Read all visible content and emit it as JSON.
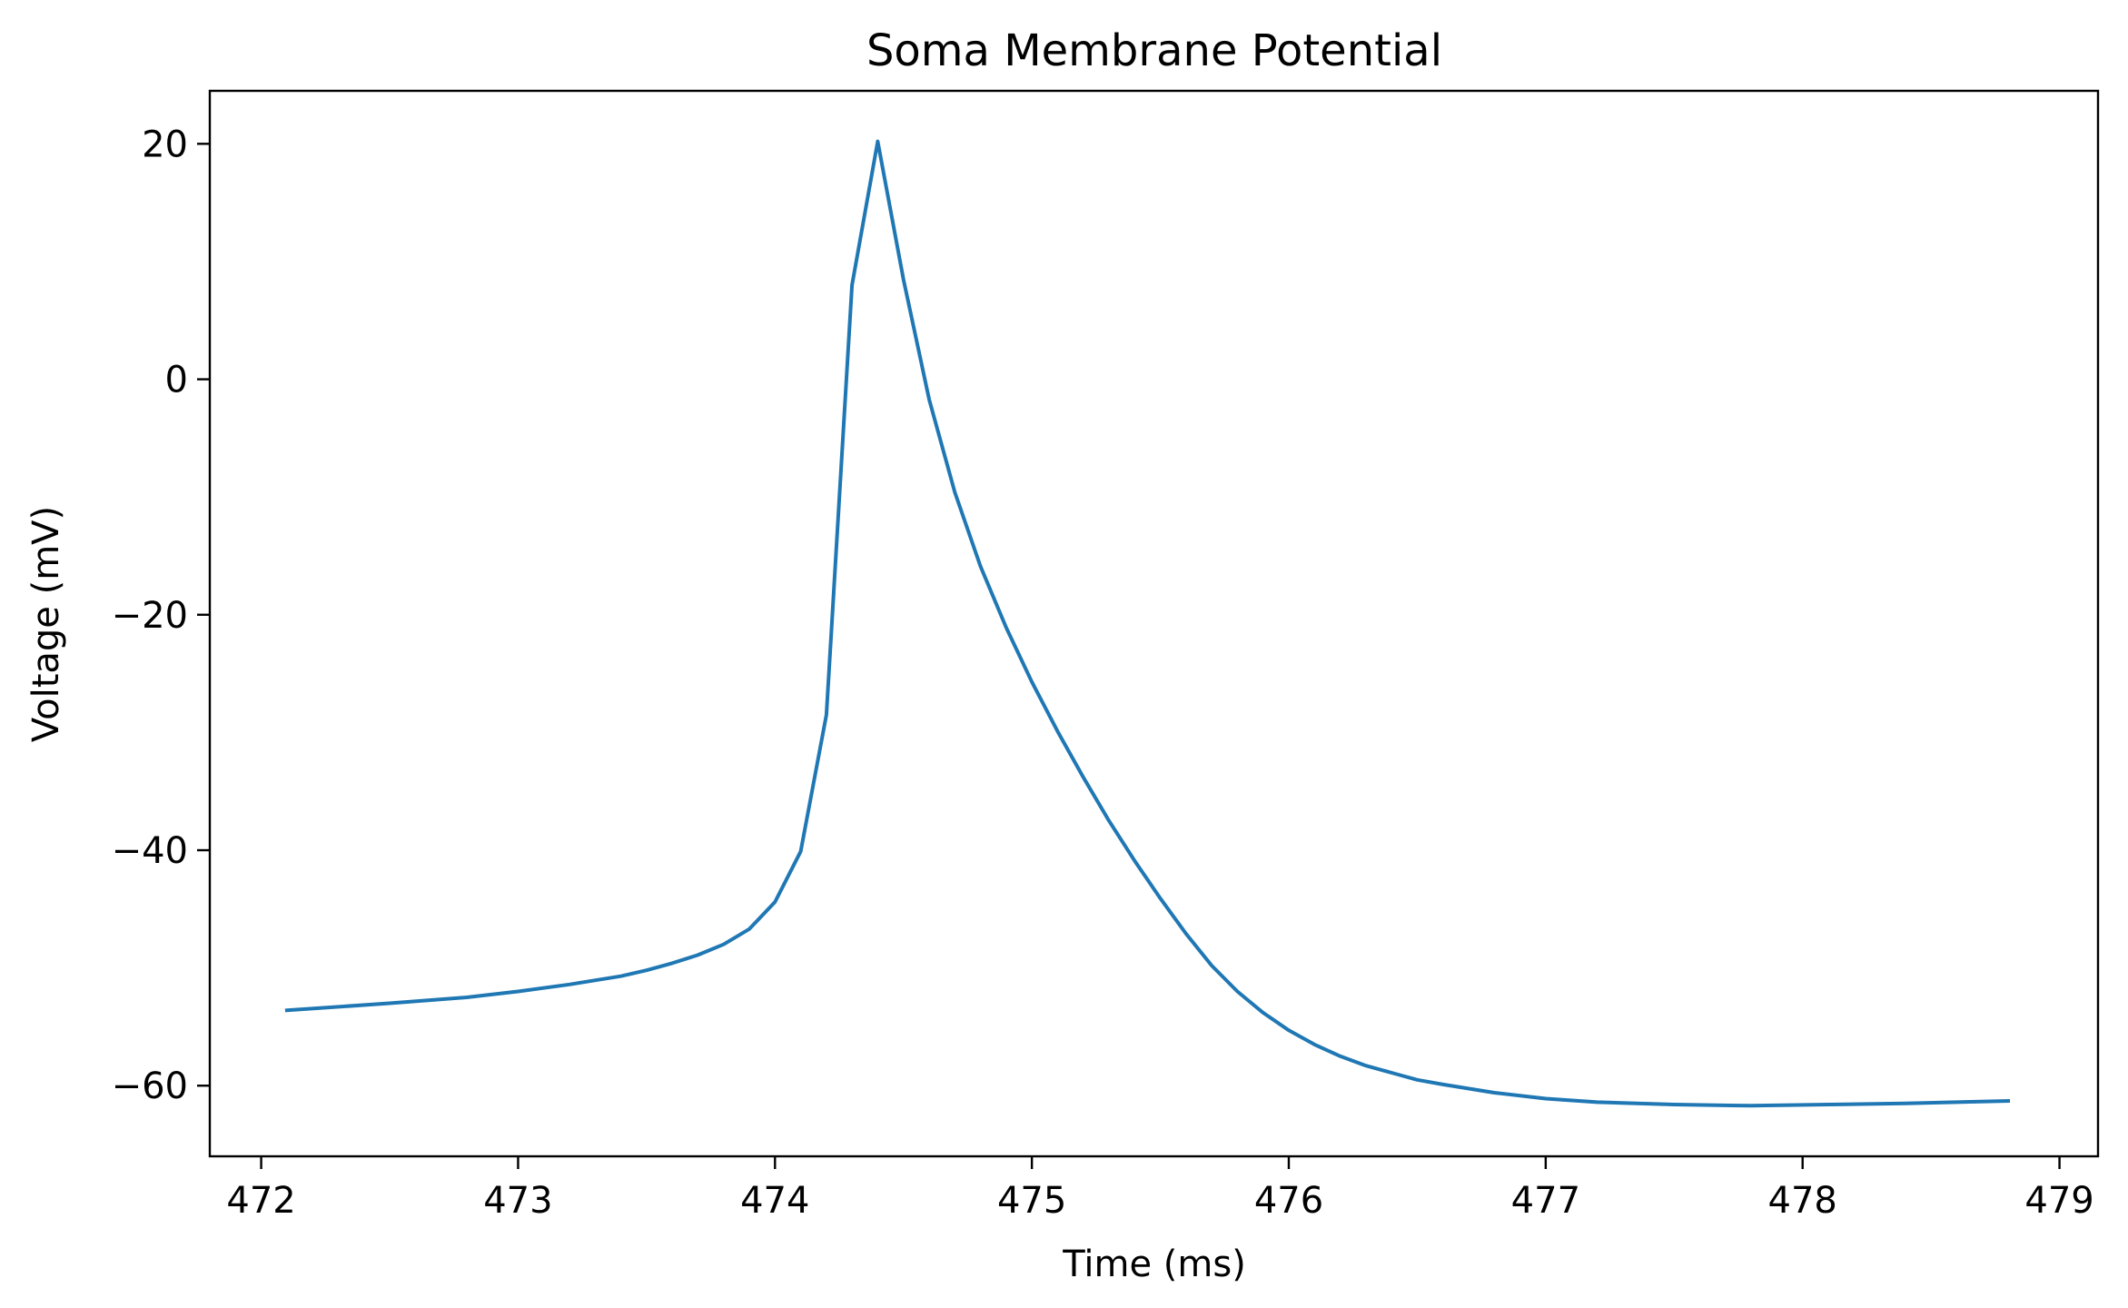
{
  "chart_data": {
    "type": "line",
    "title": "Soma Membrane Potential",
    "xlabel": "Time (ms)",
    "ylabel": "Voltage (mV)",
    "xlim": [
      471.8,
      479.15
    ],
    "ylim": [
      -66,
      24.5
    ],
    "xticks": [
      472,
      473,
      474,
      475,
      476,
      477,
      478,
      479
    ],
    "xtick_labels": [
      "472",
      "473",
      "474",
      "475",
      "476",
      "477",
      "478",
      "479"
    ],
    "yticks": [
      20,
      0,
      -20,
      -40,
      -60
    ],
    "ytick_labels": [
      "20",
      "0",
      "−20",
      "−40",
      "−60"
    ],
    "grid": false,
    "legend": "none",
    "series": [
      {
        "color": "#1f77b4",
        "x": [
          472.1,
          472.5,
          472.8,
          473.0,
          473.2,
          473.4,
          473.5,
          473.6,
          473.7,
          473.8,
          473.9,
          474.0,
          474.1,
          474.2,
          474.3,
          474.4,
          474.5,
          474.6,
          474.7,
          474.8,
          474.9,
          475.0,
          475.1,
          475.2,
          475.3,
          475.4,
          475.5,
          475.6,
          475.7,
          475.8,
          475.9,
          476.0,
          476.1,
          476.2,
          476.3,
          476.4,
          476.5,
          476.6,
          476.8,
          477.0,
          477.2,
          477.5,
          477.8,
          478.1,
          478.4,
          478.8
        ],
        "y": [
          -53.6,
          -53.0,
          -52.5,
          -52.0,
          -51.4,
          -50.7,
          -50.2,
          -49.6,
          -48.9,
          -48.0,
          -46.7,
          -44.4,
          -40.1,
          -28.5,
          8.0,
          20.2,
          8.5,
          -1.7,
          -9.6,
          -15.9,
          -21.1,
          -25.7,
          -29.9,
          -33.8,
          -37.5,
          -40.9,
          -44.1,
          -47.1,
          -49.8,
          -52.0,
          -53.8,
          -55.3,
          -56.5,
          -57.5,
          -58.3,
          -58.9,
          -59.5,
          -59.9,
          -60.6,
          -61.1,
          -61.4,
          -61.6,
          -61.7,
          -61.6,
          -61.5,
          -61.3
        ]
      }
    ]
  }
}
